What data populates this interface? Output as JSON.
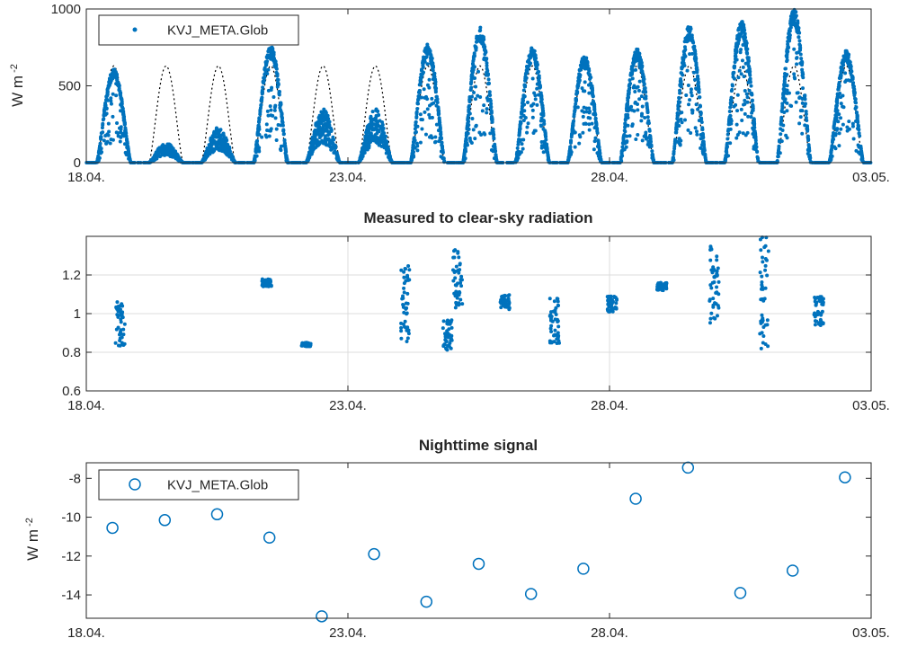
{
  "chart_data": [
    {
      "type": "scatter",
      "title": "",
      "ylabel": "W m",
      "ylabel_sup": "-2",
      "ylim": [
        0,
        1000
      ],
      "yticks": [
        "0",
        "500",
        "1000"
      ],
      "x_range": [
        "18.04.",
        "03.05."
      ],
      "xticks": [
        "18.04.",
        "23.04.",
        "28.04.",
        "03.05."
      ],
      "grid": false,
      "legend": {
        "entries": [
          "KVJ_META.Glob"
        ],
        "placement": "top-left"
      },
      "series": [
        {
          "name": "KVJ_META.Glob",
          "marker": "dot",
          "daily_peaks_W_m2": [
            610,
            130,
            230,
            760,
            350,
            350,
            770,
            880,
            750,
            700,
            740,
            890,
            920,
            1000,
            730
          ],
          "clear_sky_peak_W_m2": 630
        }
      ],
      "colors": {
        "series": "#0072bd",
        "clear_sky": "#000000"
      }
    },
    {
      "type": "scatter",
      "title": "Measured to clear-sky radiation",
      "ylabel": "",
      "ylim": [
        0.6,
        1.4
      ],
      "yticks": [
        "0.6",
        "0.8",
        "1",
        "1.2"
      ],
      "xticks": [
        "18.04.",
        "23.04.",
        "28.04.",
        "03.05."
      ],
      "grid": true,
      "series": [
        {
          "clusters": [
            {
              "day": 0.65,
              "center": 0.95,
              "spread": 0.12
            },
            {
              "day": 3.45,
              "center": 1.16,
              "spread": 0.02
            },
            {
              "day": 4.2,
              "center": 0.84,
              "spread": 0.01
            },
            {
              "day": 6.1,
              "center": 1.05,
              "spread": 0.2
            },
            {
              "day": 6.9,
              "center": 0.89,
              "spread": 0.08
            },
            {
              "day": 7.1,
              "center": 1.18,
              "spread": 0.15
            },
            {
              "day": 8.0,
              "center": 1.06,
              "spread": 0.04
            },
            {
              "day": 8.95,
              "center": 0.96,
              "spread": 0.12
            },
            {
              "day": 10.05,
              "center": 1.05,
              "spread": 0.04
            },
            {
              "day": 11.0,
              "center": 1.14,
              "spread": 0.02
            },
            {
              "day": 12.0,
              "center": 1.15,
              "spread": 0.2
            },
            {
              "day": 12.95,
              "center": 1.1,
              "spread": 0.3
            },
            {
              "day": 14.0,
              "center": 1.01,
              "spread": 0.08
            }
          ]
        }
      ],
      "colors": {
        "series": "#0072bd"
      }
    },
    {
      "type": "scatter",
      "title": "Nighttime signal",
      "ylabel": "W m",
      "ylabel_sup": "-2",
      "ylim": [
        -15.2,
        -7.2
      ],
      "yticks": [
        "-14",
        "-12",
        "-10",
        "-8"
      ],
      "xticks": [
        "18.04.",
        "23.04.",
        "28.04.",
        "03.05."
      ],
      "grid": false,
      "legend": {
        "entries": [
          "KVJ_META.Glob"
        ],
        "placement": "top-left"
      },
      "series": [
        {
          "name": "KVJ_META.Glob",
          "marker": "circle",
          "x_days": [
            0.5,
            1.5,
            2.5,
            3.5,
            4.5,
            5.5,
            6.5,
            7.5,
            8.5,
            9.5,
            10.5,
            11.5,
            12.5,
            13.5,
            14.5
          ],
          "values": [
            -10.55,
            -10.15,
            -9.85,
            -11.05,
            -15.1,
            -11.9,
            -14.35,
            -12.4,
            -13.95,
            -12.65,
            -9.05,
            -7.45,
            -13.9,
            -12.75,
            -7.95
          ]
        }
      ],
      "colors": {
        "series": "#0072bd"
      }
    }
  ]
}
